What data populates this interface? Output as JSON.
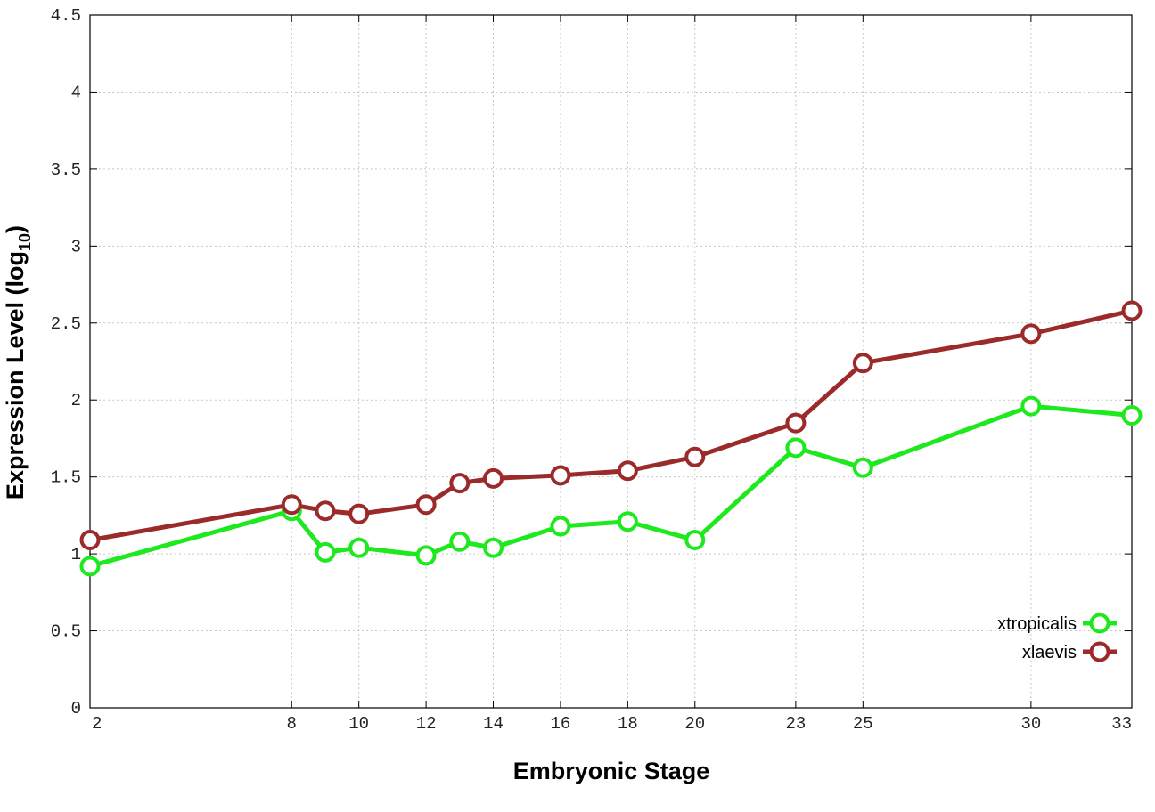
{
  "chart_data": {
    "type": "line",
    "title": "",
    "xlabel": "Embryonic Stage",
    "ylabel": "Expression Level (log",
    "ylabel_subscript": "10",
    "ylabel_suffix": ")",
    "x": [
      2,
      8,
      9,
      10,
      12,
      13,
      14,
      16,
      18,
      20,
      23,
      25,
      30,
      33
    ],
    "x_tick_labels": [
      "2",
      "8",
      "10",
      "12",
      "14",
      "16",
      "18",
      "20",
      "23",
      "25",
      "30",
      "33"
    ],
    "x_tick_values": [
      2,
      8,
      10,
      12,
      14,
      16,
      18,
      20,
      23,
      25,
      30,
      33
    ],
    "y_tick_labels": [
      "0",
      "0.5",
      "1",
      "1.5",
      "2",
      "2.5",
      "3",
      "3.5",
      "4",
      "4.5"
    ],
    "y_tick_values": [
      0,
      0.5,
      1,
      1.5,
      2,
      2.5,
      3,
      3.5,
      4,
      4.5
    ],
    "xlim": [
      2,
      33
    ],
    "ylim": [
      0,
      4.5
    ],
    "grid": true,
    "legend_position": "bottom-right",
    "series": [
      {
        "name": "xtropicalis",
        "color": "#1ee81e",
        "values": [
          0.92,
          1.28,
          1.01,
          1.04,
          0.99,
          1.08,
          1.04,
          1.18,
          1.21,
          1.09,
          1.69,
          1.56,
          1.96,
          1.9
        ]
      },
      {
        "name": "xlaevis",
        "color": "#9b2a2a",
        "values": [
          1.09,
          1.32,
          1.28,
          1.26,
          1.32,
          1.46,
          1.49,
          1.51,
          1.54,
          1.63,
          1.85,
          2.24,
          2.43,
          2.58
        ]
      }
    ]
  }
}
